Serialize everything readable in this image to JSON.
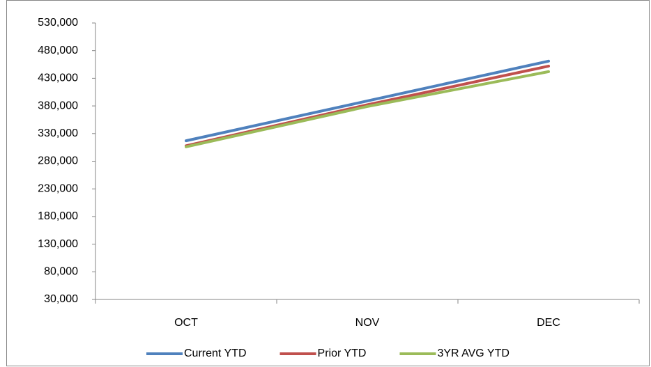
{
  "chart_data": {
    "type": "line",
    "categories": [
      "OCT",
      "NOV",
      "DEC"
    ],
    "series": [
      {
        "name": "Current YTD",
        "color": "#4f81bd",
        "values": [
          317000,
          389000,
          461000
        ]
      },
      {
        "name": "Prior YTD",
        "color": "#c0504d",
        "values": [
          308000,
          382000,
          452000
        ]
      },
      {
        "name": "3YR AVG YTD",
        "color": "#9bbb59",
        "values": [
          306000,
          379000,
          442000
        ]
      }
    ],
    "ylim": [
      30000,
      530000
    ],
    "yticks": [
      {
        "value": 30000,
        "label": "30,000"
      },
      {
        "value": 80000,
        "label": "80,000"
      },
      {
        "value": 130000,
        "label": "130,000"
      },
      {
        "value": 180000,
        "label": "180,000"
      },
      {
        "value": 230000,
        "label": "230,000"
      },
      {
        "value": 280000,
        "label": "280,000"
      },
      {
        "value": 330000,
        "label": "330,000"
      },
      {
        "value": 380000,
        "label": "380,000"
      },
      {
        "value": 430000,
        "label": "430,000"
      },
      {
        "value": 480000,
        "label": "480,000"
      },
      {
        "value": 530000,
        "label": "530,000"
      }
    ],
    "grid": false,
    "legend": "bottom"
  }
}
